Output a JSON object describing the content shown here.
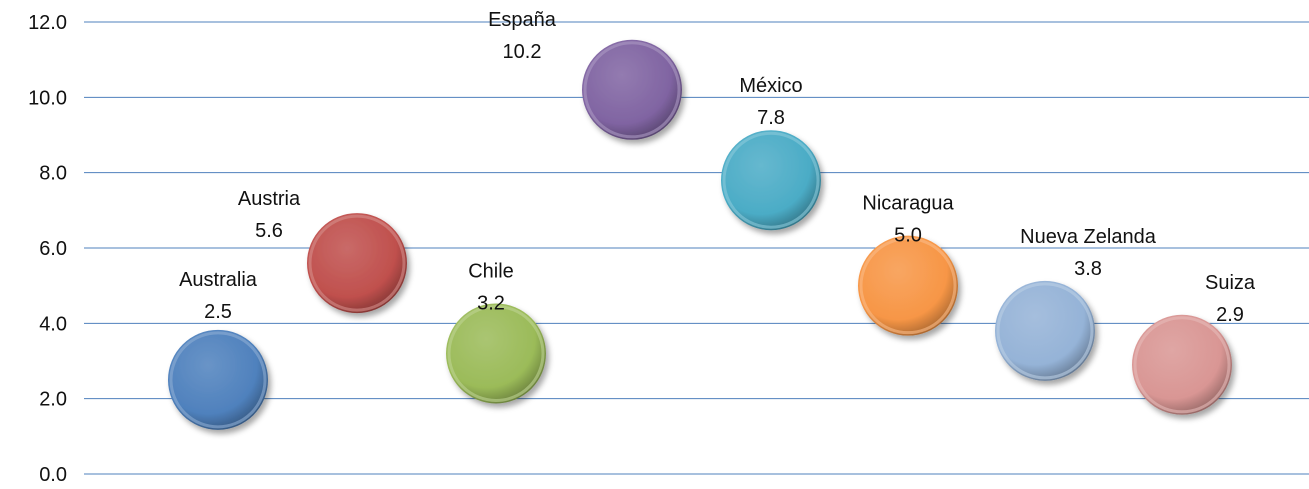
{
  "chart_data": {
    "type": "scatter",
    "title": "",
    "xlabel": "",
    "ylabel": "",
    "ylim": [
      0,
      12
    ],
    "y_ticks": [
      "0.0",
      "2.0",
      "4.0",
      "6.0",
      "8.0",
      "10.0",
      "12.0"
    ],
    "grid": true,
    "legend": "none",
    "points": [
      {
        "label": "Australia",
        "value": 2.5,
        "value_label": "2.5",
        "color": "#4f81bd"
      },
      {
        "label": "Austria",
        "value": 5.6,
        "value_label": "5.6",
        "color": "#c0504d"
      },
      {
        "label": "Chile",
        "value": 3.2,
        "value_label": "3.2",
        "color": "#9bbb59"
      },
      {
        "label": "España",
        "value": 10.2,
        "value_label": "10.2",
        "color": "#8064a2"
      },
      {
        "label": "México",
        "value": 7.8,
        "value_label": "7.8",
        "color": "#4bacc6"
      },
      {
        "label": "Nicaragua",
        "value": 5.0,
        "value_label": "5.0",
        "color": "#f79646"
      },
      {
        "label": "Nueva Zelanda",
        "value": 3.8,
        "value_label": "3.8",
        "color": "#95b3d7"
      },
      {
        "label": "Suiza",
        "value": 2.9,
        "value_label": "2.9",
        "color": "#d99694"
      }
    ],
    "gridline_color": "#4f81bd"
  }
}
